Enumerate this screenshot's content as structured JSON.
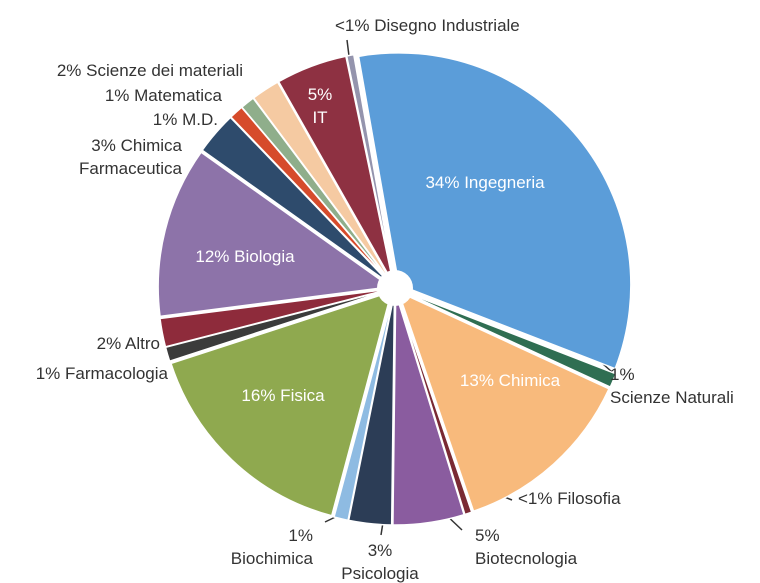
{
  "chart_data": {
    "type": "pie",
    "categories": [
      "Ingegneria",
      "Scienze Naturali",
      "Chimica",
      "Filosofia",
      "Biotecnologia",
      "Psicologia",
      "Biochimica",
      "Fisica",
      "Farmacologia",
      "Altro",
      "Biologia",
      "Chimica Farmaceutica",
      "M.D.",
      "Matematica",
      "Scienze dei materiali",
      "IT",
      "Disegno Industriale"
    ],
    "values": [
      34,
      1,
      13,
      0.5,
      5,
      3,
      1,
      16,
      1,
      2,
      12,
      3,
      1,
      1,
      2,
      5,
      0.5
    ],
    "value_labels": [
      "34%",
      "1%",
      "13%",
      "<1%",
      "5%",
      "3%",
      "1%",
      "16%",
      "1%",
      "2%",
      "12%",
      "3%",
      "1%",
      "1%",
      "2%",
      "5%",
      "<1%"
    ],
    "colors": [
      "#5b9dd9",
      "#2f6e52",
      "#f8ba7c",
      "#7a2a33",
      "#8a5c9f",
      "#2c3d56",
      "#8ebbe2",
      "#8fa94f",
      "#3b3b3b",
      "#8e2b3b",
      "#8d73a9",
      "#2e4b6c",
      "#d64b2b",
      "#8fae8b",
      "#f5caa2",
      "#8e3142",
      "#9494ad"
    ]
  }
}
